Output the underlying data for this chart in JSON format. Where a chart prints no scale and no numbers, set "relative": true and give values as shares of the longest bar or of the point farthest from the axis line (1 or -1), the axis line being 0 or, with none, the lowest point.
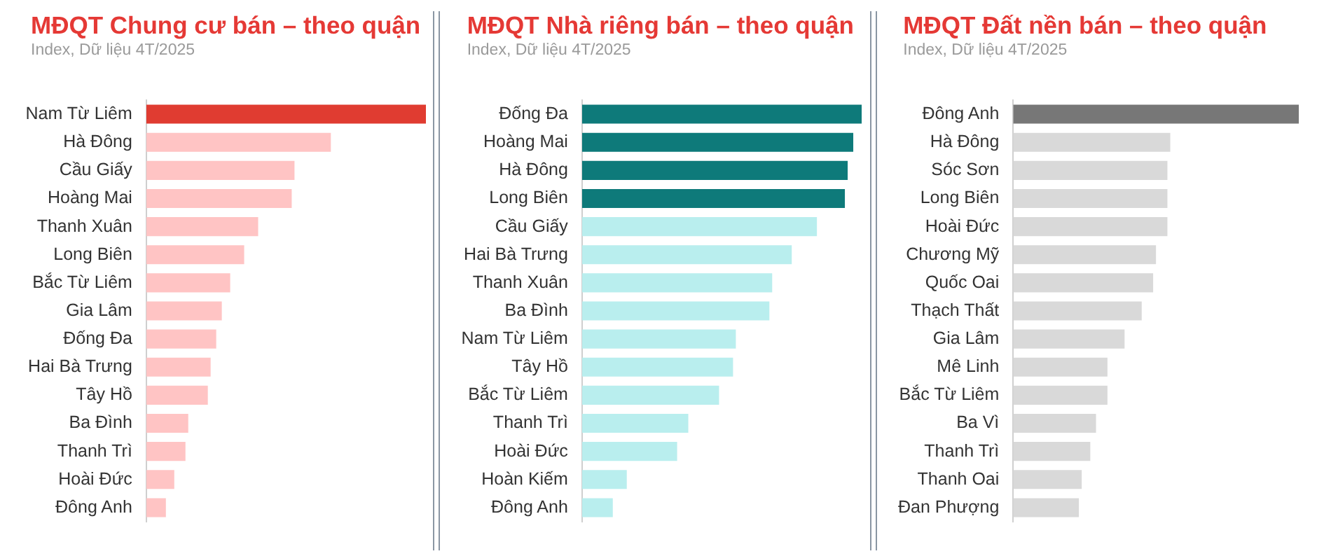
{
  "chart_data": [
    {
      "type": "bar",
      "orientation": "horizontal",
      "relative": true,
      "title": "MĐQT Chung cư bán – theo quận",
      "subtitle": "Index, Dữ liệu 4T/2025",
      "categories": [
        "Nam Từ Liêm",
        "Hà Đông",
        "Cầu Giấy",
        "Hoàng Mai",
        "Thanh Xuân",
        "Long Biên",
        "Bắc Từ Liêm",
        "Gia Lâm",
        "Đống Đa",
        "Hai Bà Trưng",
        "Tây Hồ",
        "Ba Đình",
        "Thanh Trì",
        "Hoài Đức",
        "Đông Anh"
      ],
      "values": [
        1,
        0.66,
        0.53,
        0.52,
        0.4,
        0.35,
        0.3,
        0.27,
        0.25,
        0.23,
        0.22,
        0.15,
        0.14,
        0.1,
        0.07
      ],
      "colors": [
        "#e03c31",
        "#ffc4c4",
        "#ffc4c4",
        "#ffc4c4",
        "#ffc4c4",
        "#ffc4c4",
        "#ffc4c4",
        "#ffc4c4",
        "#ffc4c4",
        "#ffc4c4",
        "#ffc4c4",
        "#ffc4c4",
        "#ffc4c4",
        "#ffc4c4",
        "#ffc4c4"
      ]
    },
    {
      "type": "bar",
      "orientation": "horizontal",
      "relative": true,
      "title": "MĐQT Nhà riêng bán – theo quận",
      "subtitle": "Index, Dữ liệu 4T/2025",
      "categories": [
        "Đống Đa",
        "Hoàng Mai",
        "Hà Đông",
        "Long Biên",
        "Cầu Giấy",
        "Hai Bà Trưng",
        "Thanh Xuân",
        "Ba Đình",
        "Nam Từ Liêm",
        "Tây Hồ",
        "Bắc Từ Liêm",
        "Thanh Trì",
        "Hoài Đức",
        "Hoàn Kiếm",
        "Đông Anh"
      ],
      "values": [
        1,
        0.97,
        0.95,
        0.94,
        0.84,
        0.75,
        0.68,
        0.67,
        0.55,
        0.54,
        0.49,
        0.38,
        0.34,
        0.16,
        0.11
      ],
      "colors": [
        "#0e7a7a",
        "#0e7a7a",
        "#0e7a7a",
        "#0e7a7a",
        "#b9eeee",
        "#b9eeee",
        "#b9eeee",
        "#b9eeee",
        "#b9eeee",
        "#b9eeee",
        "#b9eeee",
        "#b9eeee",
        "#b9eeee",
        "#b9eeee",
        "#b9eeee"
      ]
    },
    {
      "type": "bar",
      "orientation": "horizontal",
      "relative": true,
      "title": "MĐQT Đất nền bán – theo quận",
      "subtitle": "Index, Dữ liệu 4T/2025",
      "categories": [
        "Đông Anh",
        "Hà Đông",
        "Sóc Sơn",
        "Long Biên",
        "Hoài Đức",
        "Chương Mỹ",
        "Quốc Oai",
        "Thạch Thất",
        "Gia Lâm",
        "Mê Linh",
        "Bắc Từ Liêm",
        "Ba Vì",
        "Thanh Trì",
        "Thanh Oai",
        "Đan Phượng"
      ],
      "values": [
        1,
        0.55,
        0.54,
        0.54,
        0.54,
        0.5,
        0.49,
        0.45,
        0.39,
        0.33,
        0.33,
        0.29,
        0.27,
        0.24,
        0.23
      ],
      "colors": [
        "#777777",
        "#d9d9d9",
        "#d9d9d9",
        "#d9d9d9",
        "#d9d9d9",
        "#d9d9d9",
        "#d9d9d9",
        "#d9d9d9",
        "#d9d9d9",
        "#d9d9d9",
        "#d9d9d9",
        "#d9d9d9",
        "#d9d9d9",
        "#d9d9d9",
        "#d9d9d9"
      ]
    }
  ]
}
